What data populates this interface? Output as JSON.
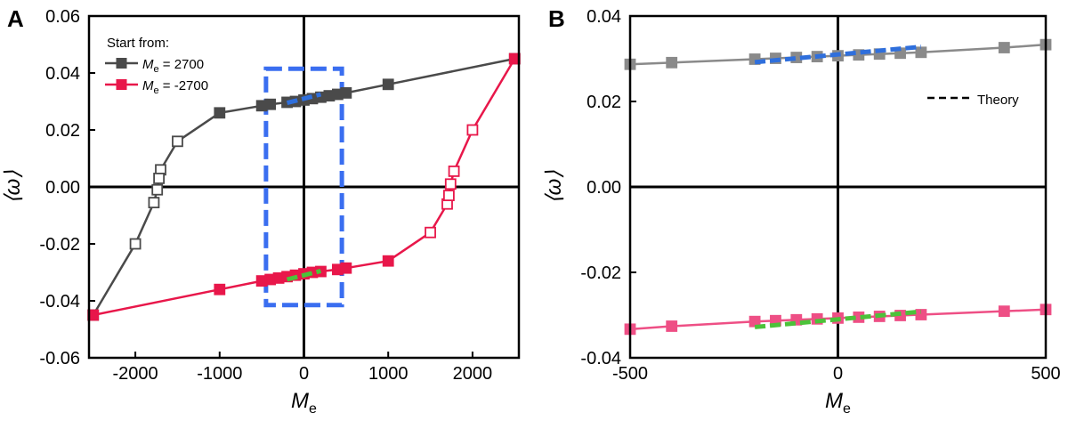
{
  "chart_data": [
    {
      "panel_label": "A",
      "type": "line",
      "xlabel_main": "M",
      "xlabel_sub": "e",
      "ylabel": "⟨ω⟩",
      "xlim": [
        -2550,
        2550
      ],
      "ylim": [
        -0.06,
        0.06
      ],
      "xticks": [
        -2000,
        -1000,
        0,
        1000,
        2000
      ],
      "xtick_labels": [
        "-2000",
        "-1000",
        "0",
        "1000",
        "2000"
      ],
      "yticks": [
        0.06,
        0.04,
        0.02,
        0.0,
        -0.02,
        -0.04,
        -0.06
      ],
      "ytick_labels": [
        "0.06",
        "0.04",
        "0.02",
        "0.00",
        "-0.02",
        "-0.04",
        "-0.06"
      ],
      "legend": {
        "title": "Start from:",
        "items": [
          {
            "prefix": "M",
            "sub": "e",
            "text": "= 2700",
            "color": "#4a4a4a"
          },
          {
            "prefix": "M",
            "sub": "e",
            "text": "= -2700",
            "color": "#e8174a"
          }
        ],
        "placement": "top-left"
      },
      "series": [
        {
          "color": "#4a4a4a",
          "points": [
            {
              "x": 2500,
              "y": 0.045,
              "filled": true
            },
            {
              "x": 1000,
              "y": 0.036,
              "filled": true
            },
            {
              "x": 500,
              "y": 0.033,
              "filled": true
            },
            {
              "x": 400,
              "y": 0.0325,
              "filled": true
            },
            {
              "x": 300,
              "y": 0.032,
              "filled": true
            },
            {
              "x": 200,
              "y": 0.0315,
              "filled": true
            },
            {
              "x": 100,
              "y": 0.031,
              "filled": true
            },
            {
              "x": 0,
              "y": 0.0305,
              "filled": true
            },
            {
              "x": -100,
              "y": 0.03,
              "filled": true
            },
            {
              "x": -200,
              "y": 0.0297,
              "filled": true
            },
            {
              "x": -400,
              "y": 0.029,
              "filled": true
            },
            {
              "x": -500,
              "y": 0.0285,
              "filled": true
            },
            {
              "x": -1000,
              "y": 0.026,
              "filled": true
            },
            {
              "x": -1500,
              "y": 0.016,
              "filled": false
            },
            {
              "x": -1700,
              "y": 0.006,
              "filled": false
            },
            {
              "x": -1720,
              "y": 0.003,
              "filled": false
            },
            {
              "x": -1740,
              "y": -0.001,
              "filled": false
            },
            {
              "x": -1780,
              "y": -0.0055,
              "filled": false
            },
            {
              "x": -2000,
              "y": -0.02,
              "filled": false
            },
            {
              "x": -2500,
              "y": -0.045,
              "filled": true
            }
          ]
        },
        {
          "color": "#e8174a",
          "points": [
            {
              "x": -2500,
              "y": -0.045,
              "filled": true
            },
            {
              "x": -1000,
              "y": -0.036,
              "filled": true
            },
            {
              "x": -500,
              "y": -0.033,
              "filled": true
            },
            {
              "x": -400,
              "y": -0.0325,
              "filled": true
            },
            {
              "x": -300,
              "y": -0.032,
              "filled": true
            },
            {
              "x": -200,
              "y": -0.0315,
              "filled": true
            },
            {
              "x": -100,
              "y": -0.031,
              "filled": true
            },
            {
              "x": 0,
              "y": -0.0305,
              "filled": true
            },
            {
              "x": 100,
              "y": -0.03,
              "filled": true
            },
            {
              "x": 200,
              "y": -0.0297,
              "filled": true
            },
            {
              "x": 400,
              "y": -0.029,
              "filled": true
            },
            {
              "x": 500,
              "y": -0.0285,
              "filled": true
            },
            {
              "x": 1000,
              "y": -0.026,
              "filled": true
            },
            {
              "x": 1500,
              "y": -0.016,
              "filled": false
            },
            {
              "x": 1700,
              "y": -0.006,
              "filled": false
            },
            {
              "x": 1720,
              "y": -0.003,
              "filled": false
            },
            {
              "x": 1740,
              "y": 0.001,
              "filled": false
            },
            {
              "x": 1780,
              "y": 0.0055,
              "filled": false
            },
            {
              "x": 2000,
              "y": 0.02,
              "filled": false
            },
            {
              "x": 2500,
              "y": 0.045,
              "filled": true
            }
          ]
        }
      ],
      "theory_lines": [
        {
          "color": "#2f6fdc",
          "x": [
            -200,
            200
          ],
          "y": [
            0.0295,
            0.0325
          ]
        },
        {
          "color": "#4cc23a",
          "x": [
            -200,
            200
          ],
          "y": [
            -0.0325,
            -0.0295
          ]
        }
      ],
      "highlight_box": {
        "color": "#3a6ef0",
        "x": [
          -450,
          450
        ],
        "y": [
          -0.0415,
          0.0415
        ]
      }
    },
    {
      "panel_label": "B",
      "type": "line",
      "xlabel_main": "M",
      "xlabel_sub": "e",
      "ylabel": "⟨ω⟩",
      "xlim": [
        -500,
        500
      ],
      "ylim": [
        -0.04,
        0.04
      ],
      "xticks": [
        -500,
        0,
        500
      ],
      "xtick_labels": [
        "-500",
        "0",
        "500"
      ],
      "yticks": [
        0.04,
        0.02,
        0.0,
        -0.02,
        -0.04
      ],
      "ytick_labels": [
        "0.04",
        "0.02",
        "0.00",
        "-0.02",
        "-0.04"
      ],
      "legend": {
        "items": [
          {
            "label": "Theory",
            "style": "dashed",
            "color": "#000000"
          }
        ],
        "placement": "top-right"
      },
      "series": [
        {
          "color": "#8a8a8a",
          "points": [
            {
              "x": -500,
              "y": 0.0287
            },
            {
              "x": -400,
              "y": 0.0291
            },
            {
              "x": -200,
              "y": 0.0299
            },
            {
              "x": -150,
              "y": 0.0301
            },
            {
              "x": -100,
              "y": 0.0303
            },
            {
              "x": -50,
              "y": 0.0305
            },
            {
              "x": 0,
              "y": 0.0307
            },
            {
              "x": 50,
              "y": 0.0309
            },
            {
              "x": 100,
              "y": 0.0311
            },
            {
              "x": 150,
              "y": 0.0313
            },
            {
              "x": 200,
              "y": 0.0315
            },
            {
              "x": 400,
              "y": 0.0326
            },
            {
              "x": 500,
              "y": 0.0333
            }
          ]
        },
        {
          "color": "#ee4f85",
          "points": [
            {
              "x": -500,
              "y": -0.0333
            },
            {
              "x": -400,
              "y": -0.0326
            },
            {
              "x": -200,
              "y": -0.0315
            },
            {
              "x": -150,
              "y": -0.0313
            },
            {
              "x": -100,
              "y": -0.0311
            },
            {
              "x": -50,
              "y": -0.0309
            },
            {
              "x": 0,
              "y": -0.0307
            },
            {
              "x": 50,
              "y": -0.0305
            },
            {
              "x": 100,
              "y": -0.0303
            },
            {
              "x": 150,
              "y": -0.0301
            },
            {
              "x": 200,
              "y": -0.0299
            },
            {
              "x": 400,
              "y": -0.0291
            },
            {
              "x": 500,
              "y": -0.0287
            }
          ]
        }
      ],
      "theory_lines": [
        {
          "color": "#2f6fdc",
          "x": [
            -200,
            200
          ],
          "y": [
            0.0292,
            0.0328
          ]
        },
        {
          "color": "#4cc23a",
          "x": [
            -200,
            200
          ],
          "y": [
            -0.0328,
            -0.0292
          ]
        }
      ]
    }
  ]
}
